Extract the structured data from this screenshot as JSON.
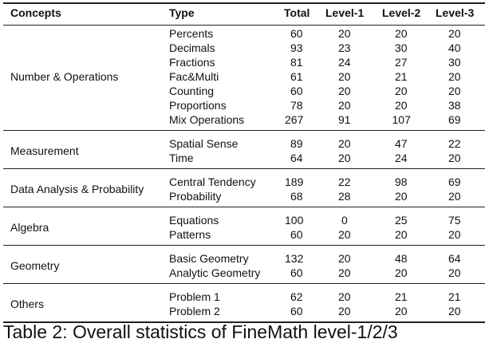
{
  "table": {
    "header": [
      "Concepts",
      "Type",
      "Total",
      "Level-1",
      "Level-2",
      "Level-3"
    ],
    "groups": [
      {
        "concept": "Number & Operations",
        "rows": [
          [
            "Percents",
            60,
            20,
            20,
            20
          ],
          [
            "Decimals",
            93,
            23,
            30,
            40
          ],
          [
            "Fractions",
            81,
            24,
            27,
            30
          ],
          [
            "Fac&Multi",
            61,
            20,
            21,
            20
          ],
          [
            "Counting",
            60,
            20,
            20,
            20
          ],
          [
            "Proportions",
            78,
            20,
            20,
            38
          ],
          [
            "Mix Operations",
            267,
            91,
            107,
            69
          ]
        ]
      },
      {
        "concept": "Measurement",
        "rows": [
          [
            "Spatial Sense",
            89,
            20,
            47,
            22
          ],
          [
            "Time",
            64,
            20,
            24,
            20
          ]
        ]
      },
      {
        "concept": "Data Analysis & Probability",
        "rows": [
          [
            "Central Tendency",
            189,
            22,
            98,
            69
          ],
          [
            "Probability",
            68,
            28,
            20,
            20
          ]
        ]
      },
      {
        "concept": "Algebra",
        "rows": [
          [
            "Equations",
            100,
            0,
            25,
            75
          ],
          [
            "Patterns",
            60,
            20,
            20,
            20
          ]
        ]
      },
      {
        "concept": "Geometry",
        "rows": [
          [
            "Basic Geometry",
            132,
            20,
            48,
            64
          ],
          [
            "Analytic Geometry",
            60,
            20,
            20,
            20
          ]
        ]
      },
      {
        "concept": "Others",
        "rows": [
          [
            "Problem 1",
            62,
            20,
            21,
            21
          ],
          [
            "Problem 2",
            60,
            20,
            20,
            20
          ]
        ]
      }
    ]
  },
  "caption": "Table 2: Overall statistics of FineMath level-1/2/3"
}
